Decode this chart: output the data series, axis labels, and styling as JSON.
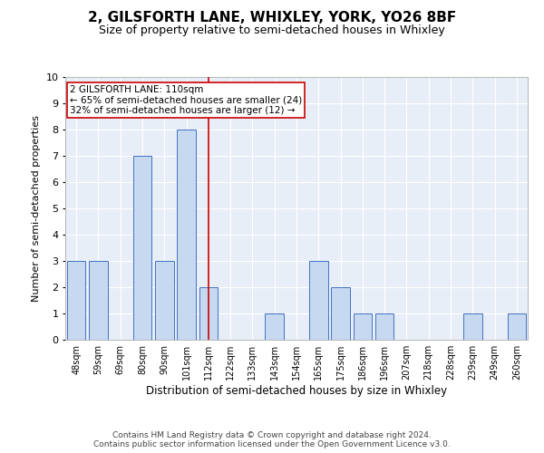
{
  "title": "2, GILSFORTH LANE, WHIXLEY, YORK, YO26 8BF",
  "subtitle": "Size of property relative to semi-detached houses in Whixley",
  "xlabel": "Distribution of semi-detached houses by size in Whixley",
  "ylabel": "Number of semi-detached properties",
  "categories": [
    "48sqm",
    "59sqm",
    "69sqm",
    "80sqm",
    "90sqm",
    "101sqm",
    "112sqm",
    "122sqm",
    "133sqm",
    "143sqm",
    "154sqm",
    "165sqm",
    "175sqm",
    "186sqm",
    "196sqm",
    "207sqm",
    "218sqm",
    "228sqm",
    "239sqm",
    "249sqm",
    "260sqm"
  ],
  "values": [
    3,
    3,
    0,
    7,
    3,
    8,
    2,
    0,
    0,
    1,
    0,
    3,
    2,
    1,
    1,
    0,
    0,
    0,
    1,
    0,
    1
  ],
  "bar_color": "#c6d9f0",
  "bar_edge_color": "#4472c4",
  "highlight_index": 6,
  "highlight_line_color": "#cc0000",
  "annotation_text": "2 GILSFORTH LANE: 110sqm\n← 65% of semi-detached houses are smaller (24)\n32% of semi-detached houses are larger (12) →",
  "annotation_box_color": "#cc0000",
  "ylim": [
    0,
    10
  ],
  "yticks": [
    0,
    1,
    2,
    3,
    4,
    5,
    6,
    7,
    8,
    9,
    10
  ],
  "background_color": "#e8eef7",
  "footer_text": "Contains HM Land Registry data © Crown copyright and database right 2024.\nContains public sector information licensed under the Open Government Licence v3.0.",
  "title_fontsize": 11,
  "subtitle_fontsize": 9,
  "xlabel_fontsize": 8.5,
  "ylabel_fontsize": 8,
  "tick_fontsize": 7,
  "annotation_fontsize": 7.5,
  "footer_fontsize": 6.5
}
